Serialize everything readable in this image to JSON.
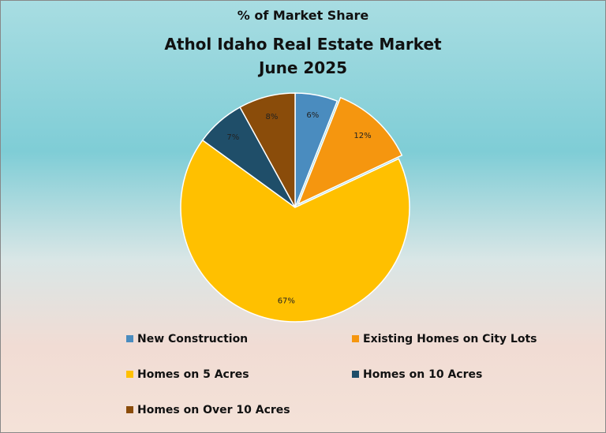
{
  "chart_data": {
    "type": "pie",
    "heading": "% of Market Share",
    "title": "Athol Idaho Real Estate Market",
    "subtitle": "June 2025",
    "categories": [
      "New Construction",
      "Existing Homes on City Lots",
      "Homes on 5 Acres",
      "Homes on 10 Acres",
      "Homes on Over 10 Acres"
    ],
    "values": [
      6,
      12,
      67,
      7,
      8
    ],
    "value_labels": [
      "6%",
      "12%",
      "67%",
      "7%",
      "8%"
    ],
    "colors": [
      "#4a8cbf",
      "#f5960f",
      "#ffc000",
      "#1f4e69",
      "#8a4c0a"
    ]
  }
}
